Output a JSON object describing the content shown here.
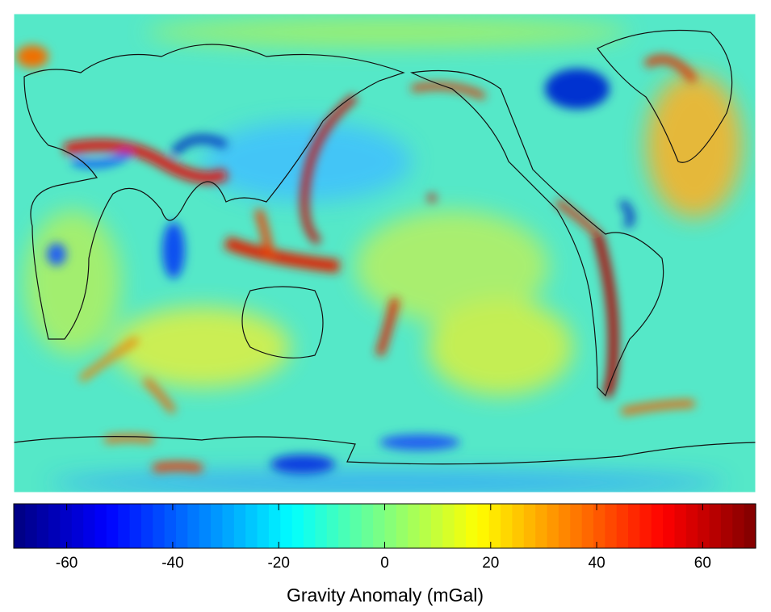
{
  "colorbar": {
    "label": "Gravity Anomaly (mGal)",
    "lim": [
      -70,
      70
    ],
    "ticks": [
      -60,
      -40,
      -20,
      0,
      20,
      40,
      60
    ]
  }
}
